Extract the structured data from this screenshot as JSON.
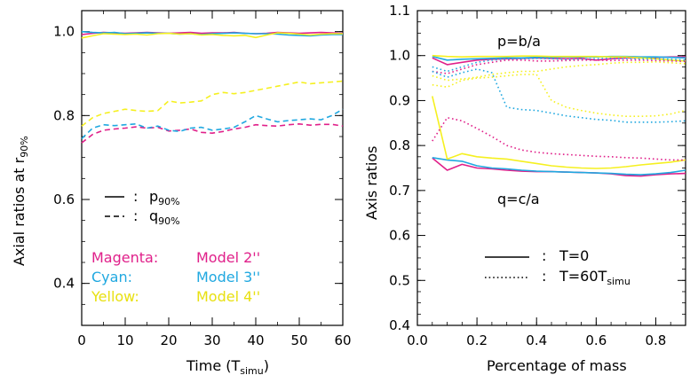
{
  "colors": {
    "magenta": "#e0208a",
    "cyan": "#20a8e0",
    "yellow": "#f5f020",
    "axes": "#000000"
  },
  "chart_data": [
    {
      "type": "line",
      "xlabel_main": "Time (T",
      "xlabel_sub": "simu",
      "xlabel_end": ")",
      "ylabel_main": "Axial ratios at r",
      "ylabel_sub": "90%",
      "xlim": [
        0,
        60
      ],
      "ylim": [
        0.3,
        1.05
      ],
      "xticks": [
        "0",
        "10",
        "20",
        "30",
        "40",
        "50",
        "60"
      ],
      "yticks": [
        "0.4",
        "0.6",
        "0.8",
        "1.0"
      ],
      "legend_lines": [
        {
          "style": "solid",
          "sep": ":",
          "label": "p",
          "sub": "90%"
        },
        {
          "style": "dashed",
          "sep": ":",
          "label": "q",
          "sub": "90%"
        }
      ],
      "color_key": [
        {
          "name": "Magenta:",
          "model": "Model 2''",
          "color_key": "magenta"
        },
        {
          "name": "Cyan:",
          "model": "Model 3''",
          "color_key": "cyan"
        },
        {
          "name": "Yellow:",
          "model": "Model 4''",
          "color_key": "yellow"
        }
      ],
      "x": [
        0,
        2.5,
        5,
        7.5,
        10,
        12.5,
        15,
        17.5,
        20,
        22.5,
        25,
        27.5,
        30,
        32.5,
        35,
        37.5,
        40,
        42.5,
        45,
        47.5,
        50,
        52.5,
        55,
        57.5,
        60
      ],
      "series": [
        {
          "color_key": "magenta",
          "style": "solid",
          "values": [
            0.993,
            0.996,
            0.998,
            0.997,
            0.996,
            0.997,
            0.998,
            0.997,
            0.996,
            0.997,
            0.998,
            0.996,
            0.997,
            0.997,
            0.998,
            0.996,
            0.995,
            0.996,
            0.998,
            0.997,
            0.996,
            0.997,
            0.998,
            0.997,
            0.996
          ]
        },
        {
          "color_key": "cyan",
          "style": "solid",
          "values": [
            1.0,
            0.998,
            0.997,
            0.998,
            0.995,
            0.996,
            0.997,
            0.996,
            0.996,
            0.994,
            0.995,
            0.993,
            0.995,
            0.996,
            0.997,
            0.996,
            0.995,
            0.995,
            0.994,
            0.992,
            0.991,
            0.99,
            0.992,
            0.993,
            0.993
          ]
        },
        {
          "color_key": "yellow",
          "style": "solid",
          "values": [
            0.985,
            0.99,
            0.995,
            0.994,
            0.993,
            0.994,
            0.992,
            0.995,
            0.996,
            0.994,
            0.995,
            0.992,
            0.993,
            0.991,
            0.99,
            0.991,
            0.986,
            0.992,
            0.997,
            0.996,
            0.994,
            0.992,
            0.994,
            0.995,
            0.995
          ]
        },
        {
          "color_key": "magenta",
          "style": "dashed",
          "values": [
            0.735,
            0.755,
            0.765,
            0.768,
            0.77,
            0.773,
            0.77,
            0.772,
            0.763,
            0.765,
            0.768,
            0.76,
            0.758,
            0.762,
            0.768,
            0.772,
            0.778,
            0.776,
            0.775,
            0.778,
            0.78,
            0.777,
            0.779,
            0.779,
            0.775
          ]
        },
        {
          "color_key": "cyan",
          "style": "dashed",
          "values": [
            0.745,
            0.77,
            0.778,
            0.776,
            0.778,
            0.78,
            0.77,
            0.775,
            0.765,
            0.762,
            0.77,
            0.772,
            0.765,
            0.768,
            0.772,
            0.785,
            0.8,
            0.792,
            0.785,
            0.788,
            0.79,
            0.792,
            0.79,
            0.8,
            0.815
          ]
        },
        {
          "color_key": "yellow",
          "style": "dashed",
          "values": [
            0.775,
            0.795,
            0.805,
            0.81,
            0.815,
            0.812,
            0.81,
            0.812,
            0.835,
            0.83,
            0.832,
            0.835,
            0.85,
            0.855,
            0.852,
            0.855,
            0.86,
            0.865,
            0.87,
            0.875,
            0.88,
            0.876,
            0.878,
            0.88,
            0.882
          ]
        }
      ]
    },
    {
      "type": "line",
      "xlabel": "Percentage of mass",
      "ylabel": "Axis ratios",
      "xlim": [
        0,
        0.9
      ],
      "ylim": [
        0.4,
        1.1
      ],
      "xticks": [
        "0.0",
        "0.2",
        "0.4",
        "0.6",
        "0.8"
      ],
      "yticks": [
        "0.4",
        "0.5",
        "0.6",
        "0.7",
        "0.8",
        "0.9",
        "1.0",
        "1.1"
      ],
      "annotations": {
        "p": "p=b/a",
        "q": "q=c/a"
      },
      "legend_lines": [
        {
          "style": "solid",
          "sep": ":",
          "label": "T=0",
          "sub": ""
        },
        {
          "style": "dotted",
          "sep": ":",
          "label": "T=60T",
          "sub": "simu"
        }
      ],
      "x": [
        0.05,
        0.1,
        0.15,
        0.2,
        0.25,
        0.3,
        0.35,
        0.4,
        0.45,
        0.5,
        0.55,
        0.6,
        0.65,
        0.7,
        0.75,
        0.8,
        0.85,
        0.9
      ],
      "series": [
        {
          "color_key": "magenta",
          "style": "solid",
          "values": [
            0.995,
            0.98,
            0.985,
            0.99,
            0.992,
            0.993,
            0.994,
            0.995,
            0.994,
            0.993,
            0.994,
            0.99,
            0.993,
            0.995,
            0.995,
            0.996,
            0.997,
            0.997
          ]
        },
        {
          "color_key": "cyan",
          "style": "solid",
          "values": [
            0.998,
            0.99,
            0.992,
            0.993,
            0.994,
            0.995,
            0.995,
            0.996,
            0.996,
            0.997,
            0.997,
            0.997,
            0.998,
            0.998,
            0.997,
            0.997,
            0.996,
            0.995
          ]
        },
        {
          "color_key": "yellow",
          "style": "solid",
          "values": [
            1.0,
            0.998,
            0.997,
            0.998,
            0.998,
            0.998,
            0.999,
            0.999,
            0.998,
            0.998,
            0.998,
            0.998,
            0.997,
            0.997,
            0.995,
            0.993,
            0.99,
            0.988
          ]
        },
        {
          "color_key": "magenta",
          "style": "solid",
          "values": [
            0.772,
            0.745,
            0.758,
            0.75,
            0.748,
            0.745,
            0.743,
            0.742,
            0.742,
            0.741,
            0.74,
            0.739,
            0.737,
            0.733,
            0.732,
            0.735,
            0.737,
            0.738
          ]
        },
        {
          "color_key": "cyan",
          "style": "solid",
          "values": [
            0.773,
            0.768,
            0.765,
            0.755,
            0.75,
            0.748,
            0.745,
            0.743,
            0.742,
            0.741,
            0.74,
            0.739,
            0.738,
            0.736,
            0.735,
            0.737,
            0.74,
            0.745
          ]
        },
        {
          "color_key": "yellow",
          "style": "solid",
          "values": [
            0.91,
            0.77,
            0.782,
            0.775,
            0.772,
            0.77,
            0.765,
            0.76,
            0.755,
            0.752,
            0.75,
            0.749,
            0.75,
            0.753,
            0.757,
            0.76,
            0.763,
            0.768
          ]
        },
        {
          "color_key": "magenta",
          "style": "dotted",
          "values": [
            0.965,
            0.96,
            0.97,
            0.98,
            0.985,
            0.99,
            0.99,
            0.988,
            0.988,
            0.989,
            0.99,
            0.99,
            0.989,
            0.99,
            0.99,
            0.989,
            0.988,
            0.987
          ]
        },
        {
          "color_key": "cyan",
          "style": "dotted",
          "values": [
            0.975,
            0.965,
            0.975,
            0.985,
            0.99,
            0.993,
            0.993,
            0.994,
            0.993,
            0.992,
            0.993,
            0.993,
            0.994,
            0.994,
            0.993,
            0.993,
            0.992,
            0.99
          ]
        },
        {
          "color_key": "yellow",
          "style": "dotted",
          "values": [
            0.955,
            0.945,
            0.948,
            0.952,
            0.958,
            0.962,
            0.965,
            0.965,
            0.97,
            0.975,
            0.978,
            0.98,
            0.983,
            0.985,
            0.985,
            0.986,
            0.984,
            0.982
          ]
        },
        {
          "color_key": "cyan",
          "style": "dotted",
          "values": [
            0.965,
            0.952,
            0.962,
            0.97,
            0.962,
            0.885,
            0.88,
            0.878,
            0.872,
            0.866,
            0.862,
            0.858,
            0.856,
            0.852,
            0.852,
            0.852,
            0.853,
            0.855
          ]
        },
        {
          "color_key": "yellow",
          "style": "dotted",
          "values": [
            0.935,
            0.93,
            0.945,
            0.95,
            0.952,
            0.955,
            0.958,
            0.958,
            0.9,
            0.885,
            0.878,
            0.872,
            0.868,
            0.865,
            0.865,
            0.866,
            0.87,
            0.878
          ]
        },
        {
          "color_key": "magenta",
          "style": "dotted",
          "values": [
            0.81,
            0.862,
            0.855,
            0.838,
            0.82,
            0.8,
            0.79,
            0.785,
            0.782,
            0.78,
            0.778,
            0.776,
            0.775,
            0.773,
            0.772,
            0.77,
            0.768,
            0.768
          ]
        }
      ]
    }
  ]
}
